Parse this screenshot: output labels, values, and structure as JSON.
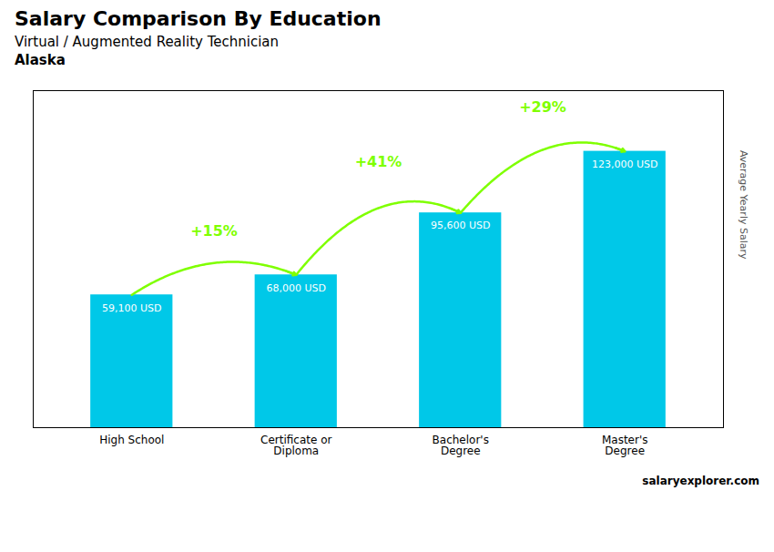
{
  "chart_data": {
    "type": "bar",
    "title": "Salary Comparison By Education",
    "subtitle": "Virtual / Augmented Reality Technician",
    "location": "Alaska",
    "caption": "salaryexplorer.com",
    "ylabel": "Average Yearly Salary",
    "categories": [
      "High School",
      "Certificate or\nDiploma",
      "Bachelor's\nDegree",
      "Master's\nDegree"
    ],
    "values": [
      59100,
      68000,
      95600,
      123000
    ],
    "value_labels": [
      "59,100 USD",
      "68,000 USD",
      "95,600 USD",
      "123,000 USD"
    ],
    "data_labels": true,
    "color": "#00c8e8",
    "annotations": [
      {
        "text": "+15%",
        "color": "#7fff00"
      },
      {
        "text": "+41%",
        "color": "#7fff00"
      },
      {
        "text": "+29%",
        "color": "#7fff00"
      }
    ],
    "ylim": [
      0,
      150000
    ],
    "yticks": [],
    "tick_labels": "x",
    "grid": false
  }
}
